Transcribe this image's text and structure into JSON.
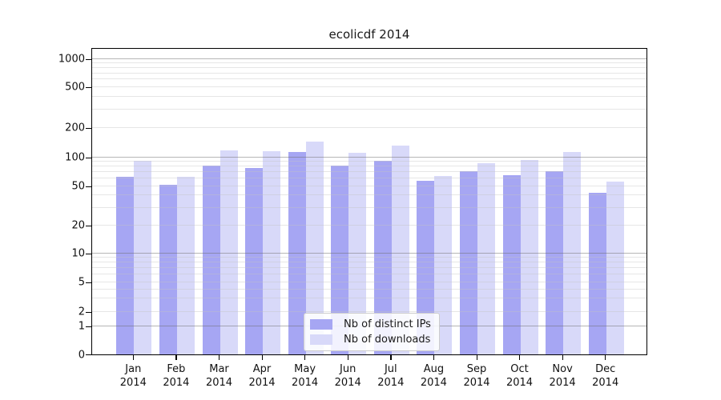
{
  "chart_data": {
    "type": "bar",
    "title": "ecolicdf 2014",
    "x_year": "2014",
    "categories": [
      "Jan",
      "Feb",
      "Mar",
      "Apr",
      "May",
      "Jun",
      "Jul",
      "Aug",
      "Sep",
      "Oct",
      "Nov",
      "Dec"
    ],
    "series": [
      {
        "name": "Nb of distinct IPs",
        "color": "#a6a6f3",
        "values": [
          63,
          52,
          82,
          77,
          113,
          81,
          92,
          57,
          71,
          65,
          72,
          43
        ]
      },
      {
        "name": "Nb of downloads",
        "color": "#d8d9f9",
        "values": [
          91,
          63,
          118,
          116,
          145,
          111,
          132,
          64,
          86,
          93,
          112,
          56
        ]
      }
    ],
    "ylabel": "",
    "xlabel": "",
    "y_scale": "log-like (0,1 then log decades)",
    "y_ticks": [
      0,
      1,
      2,
      5,
      10,
      20,
      50,
      100,
      200,
      500,
      1000
    ],
    "scale_anchors": [
      [
        0,
        0.0
      ],
      [
        1,
        0.0926
      ],
      [
        2,
        0.1395
      ],
      [
        5,
        0.236
      ],
      [
        10,
        0.3299
      ],
      [
        20,
        0.4211
      ],
      [
        50,
        0.5489
      ],
      [
        100,
        0.6428
      ],
      [
        200,
        0.7392
      ],
      [
        500,
        0.8722
      ],
      [
        1000,
        0.9635
      ]
    ],
    "grid": {
      "major_values": [
        1,
        10,
        100,
        1000
      ],
      "minor_values": [
        2,
        3,
        4,
        5,
        6,
        7,
        8,
        9,
        20,
        30,
        40,
        50,
        60,
        70,
        80,
        90,
        200,
        300,
        400,
        500,
        600,
        700,
        800,
        900
      ],
      "major_color": "rgba(110,110,110,0.50)",
      "minor_color": "rgba(195,195,195,0.42)",
      "grid_on_top_of_bars": true
    },
    "legend_position": "lower center (inside axes)"
  },
  "colors": {
    "background": "#ffffff",
    "spine": "#000000",
    "text": "#111111",
    "legend_border": "#cccccc"
  }
}
